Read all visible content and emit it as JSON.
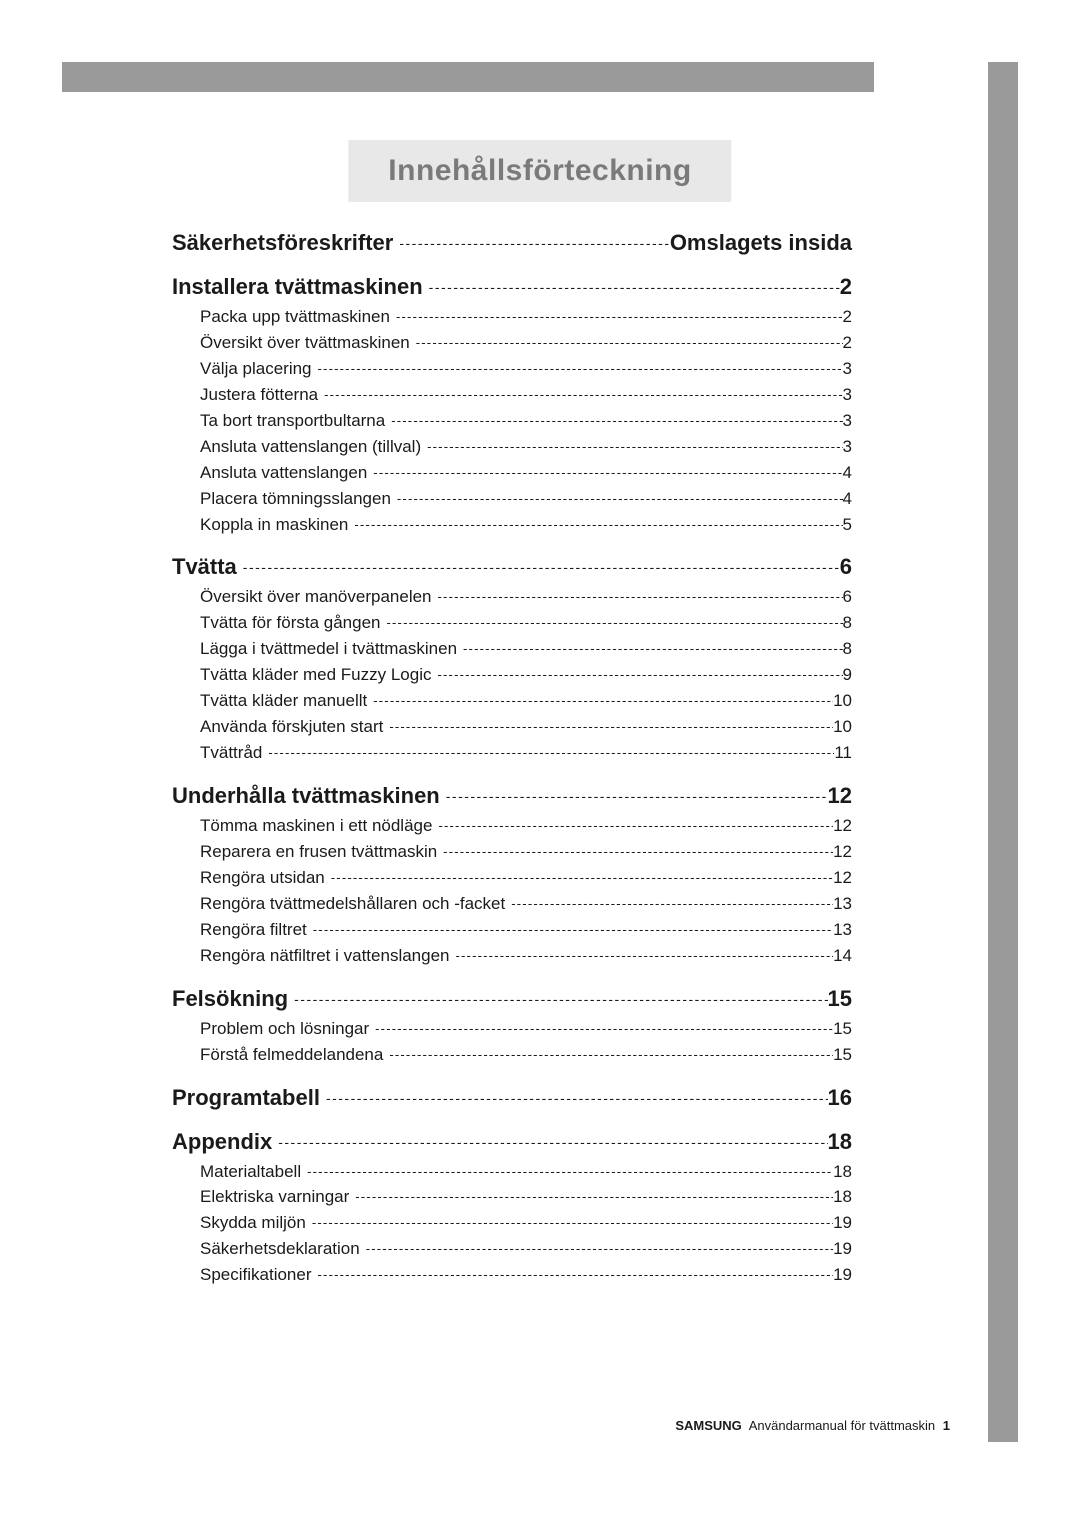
{
  "title": "Innehållsförteckning",
  "colors": {
    "bar": "#9a9a9a",
    "title_bg": "#e8e8e8",
    "title_text": "#7a7a7a",
    "text": "#1a1a1a",
    "background": "#ffffff"
  },
  "typography": {
    "title_fontsize": 30,
    "section_fontsize": 22,
    "sub_fontsize": 17,
    "footer_fontsize": 13
  },
  "sections": [
    {
      "label": "Säkerhetsföreskrifter",
      "page_label": "Omslagets insida",
      "subs": []
    },
    {
      "label": "Installera tvättmaskinen",
      "page_label": "2",
      "subs": [
        {
          "label": "Packa upp tvättmaskinen",
          "page": "2"
        },
        {
          "label": "Översikt över tvättmaskinen",
          "page": "2"
        },
        {
          "label": "Välja placering",
          "page": "3"
        },
        {
          "label": "Justera fötterna",
          "page": "3"
        },
        {
          "label": "Ta bort transportbultarna",
          "page": "3"
        },
        {
          "label": "Ansluta vattenslangen (tillval)",
          "page": "3"
        },
        {
          "label": "Ansluta vattenslangen",
          "page": "4"
        },
        {
          "label": "Placera tömningsslangen",
          "page": "4"
        },
        {
          "label": "Koppla in maskinen",
          "page": "5"
        }
      ]
    },
    {
      "label": "Tvätta",
      "page_label": "6",
      "subs": [
        {
          "label": "Översikt över manöverpanelen",
          "page": "6"
        },
        {
          "label": "Tvätta för första gången",
          "page": "8"
        },
        {
          "label": "Lägga i tvättmedel i tvättmaskinen",
          "page": "8"
        },
        {
          "label": "Tvätta kläder med Fuzzy Logic",
          "page": "9"
        },
        {
          "label": "Tvätta kläder manuellt",
          "page": "10"
        },
        {
          "label": "Använda förskjuten start",
          "page": "10"
        },
        {
          "label": "Tvättråd",
          "page": "11"
        }
      ]
    },
    {
      "label": "Underhålla tvättmaskinen",
      "page_label": "12",
      "subs": [
        {
          "label": "Tömma maskinen i ett nödläge",
          "page": "12"
        },
        {
          "label": "Reparera en frusen tvättmaskin",
          "page": "12"
        },
        {
          "label": "Rengöra utsidan",
          "page": "12"
        },
        {
          "label": "Rengöra tvättmedelshållaren och -facket",
          "page": "13"
        },
        {
          "label": "Rengöra filtret",
          "page": "13"
        },
        {
          "label": "Rengöra nätfiltret i vattenslangen",
          "page": "14"
        }
      ]
    },
    {
      "label": "Felsökning",
      "page_label": "15",
      "subs": [
        {
          "label": "Problem och lösningar",
          "page": "15"
        },
        {
          "label": "Förstå felmeddelandena",
          "page": "15"
        }
      ]
    },
    {
      "label": "Programtabell",
      "page_label": "16",
      "subs": []
    },
    {
      "label": "Appendix",
      "page_label": "18",
      "subs": [
        {
          "label": "Materialtabell",
          "page": "18"
        },
        {
          "label": "Elektriska varningar",
          "page": "18"
        },
        {
          "label": "Skydda miljön",
          "page": "19"
        },
        {
          "label": "Säkerhetsdeklaration",
          "page": "19"
        },
        {
          "label": "Specifikationer",
          "page": "19"
        }
      ]
    }
  ],
  "footer": {
    "brand": "SAMSUNG",
    "text": "Användarmanual för tvättmaskin",
    "page": "1"
  }
}
